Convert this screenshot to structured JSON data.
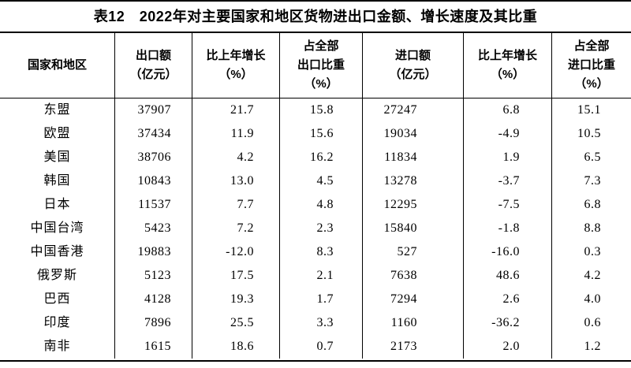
{
  "title": "表12　2022年对主要国家和地区货物进出口金额、增长速度及其比重",
  "table": {
    "columns": [
      [
        "国家和地区"
      ],
      [
        "出口额",
        "（亿元）"
      ],
      [
        "比上年增长",
        "（%）"
      ],
      [
        "占全部",
        "出口比重",
        "（%）"
      ],
      [
        "进口额",
        "（亿元）"
      ],
      [
        "比上年增长",
        "（%）"
      ],
      [
        "占全部",
        "进口比重",
        "（%）"
      ]
    ],
    "rows": [
      {
        "region": "东盟",
        "export": "37907",
        "export_growth": "21.7",
        "export_share": "15.8",
        "import": "27247",
        "import_growth": "6.8",
        "import_share": "15.1"
      },
      {
        "region": "欧盟",
        "export": "37434",
        "export_growth": "11.9",
        "export_share": "15.6",
        "import": "19034",
        "import_growth": "-4.9",
        "import_share": "10.5"
      },
      {
        "region": "美国",
        "export": "38706",
        "export_growth": "4.2",
        "export_share": "16.2",
        "import": "11834",
        "import_growth": "1.9",
        "import_share": "6.5"
      },
      {
        "region": "韩国",
        "export": "10843",
        "export_growth": "13.0",
        "export_share": "4.5",
        "import": "13278",
        "import_growth": "-3.7",
        "import_share": "7.3"
      },
      {
        "region": "日本",
        "export": "11537",
        "export_growth": "7.7",
        "export_share": "4.8",
        "import": "12295",
        "import_growth": "-7.5",
        "import_share": "6.8"
      },
      {
        "region": "中国台湾",
        "export": "5423",
        "export_growth": "7.2",
        "export_share": "2.3",
        "import": "15840",
        "import_growth": "-1.8",
        "import_share": "8.8"
      },
      {
        "region": "中国香港",
        "export": "19883",
        "export_growth": "-12.0",
        "export_share": "8.3",
        "import": "527",
        "import_growth": "-16.0",
        "import_share": "0.3"
      },
      {
        "region": "俄罗斯",
        "export": "5123",
        "export_growth": "17.5",
        "export_share": "2.1",
        "import": "7638",
        "import_growth": "48.6",
        "import_share": "4.2"
      },
      {
        "region": "巴西",
        "export": "4128",
        "export_growth": "19.3",
        "export_share": "1.7",
        "import": "7294",
        "import_growth": "2.6",
        "import_share": "4.0"
      },
      {
        "region": "印度",
        "export": "7896",
        "export_growth": "25.5",
        "export_share": "3.3",
        "import": "1160",
        "import_growth": "-36.2",
        "import_share": "0.6"
      },
      {
        "region": "南非",
        "export": "1615",
        "export_growth": "18.6",
        "export_share": "0.7",
        "import": "2173",
        "import_growth": "2.0",
        "import_share": "1.2"
      }
    ]
  }
}
